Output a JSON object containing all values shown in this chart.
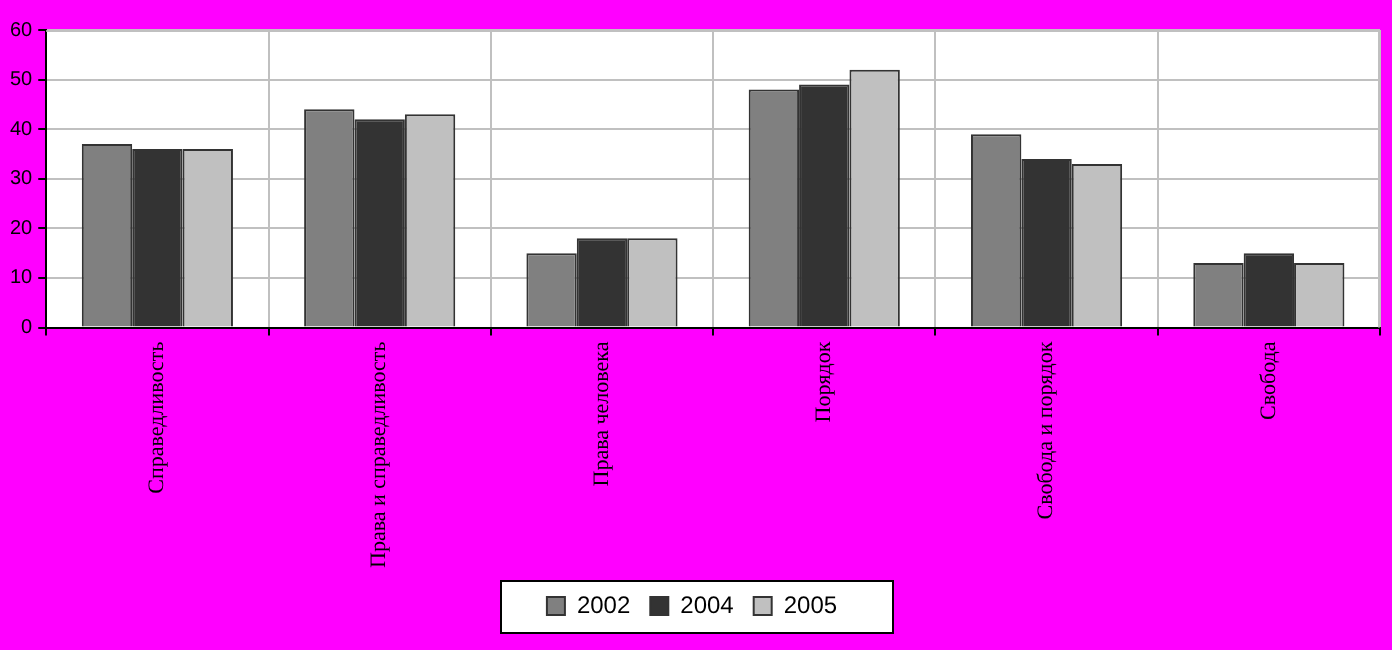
{
  "chart_data": {
    "type": "bar",
    "categories": [
      "Справедливость",
      "Права и справедливость",
      "Права человека",
      "Порядок",
      "Свобода и порядок",
      "Свобода"
    ],
    "series": [
      {
        "name": "2002",
        "color": "#808080",
        "values": [
          37,
          44,
          15,
          48,
          39,
          13
        ]
      },
      {
        "name": "2004",
        "color": "#333333",
        "values": [
          36,
          42,
          18,
          49,
          34,
          15
        ]
      },
      {
        "name": "2005",
        "color": "#c0c0c0",
        "values": [
          36,
          43,
          18,
          52,
          33,
          13
        ]
      }
    ],
    "ylim": [
      0,
      60
    ],
    "yticks": [
      0,
      10,
      20,
      30,
      40,
      50,
      60
    ],
    "grid": true,
    "legend": "bottom"
  }
}
